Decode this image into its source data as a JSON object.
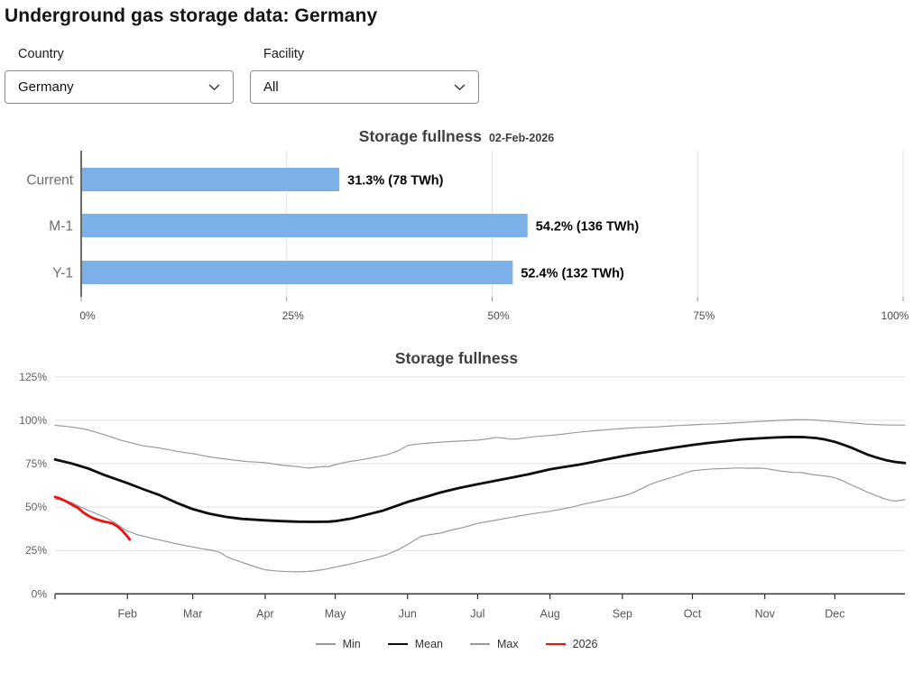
{
  "page": {
    "title": "Underground gas storage data: Germany"
  },
  "filters": {
    "country": {
      "label": "Country",
      "value": "Germany"
    },
    "facility": {
      "label": "Facility",
      "value": "All"
    }
  },
  "colors": {
    "bar_fill": "#7cb0e9",
    "grid": "#e2e2e2",
    "axis": "#2b2b2b",
    "tick_text": "#4a4a4a",
    "category_text": "#6e6e6e",
    "value_label_text": "#000000"
  },
  "chart_data": [
    {
      "type": "bar",
      "orientation": "horizontal",
      "title": "Storage fullness",
      "subtitle": "02-Feb-2026",
      "categories": [
        "Current",
        "M-1",
        "Y-1"
      ],
      "values": [
        31.3,
        54.2,
        52.4
      ],
      "value_labels": [
        "31.3% (78 TWh)",
        "54.2% (136 TWh)",
        "52.4% (132 TWh)"
      ],
      "xlim": [
        0,
        100
      ],
      "xticks": [
        0,
        25,
        50,
        75,
        100
      ],
      "xtick_labels": [
        "0%",
        "25%",
        "50%",
        "75%",
        "100%"
      ]
    },
    {
      "type": "line",
      "title": "Storage fullness",
      "ylim": [
        0,
        125
      ],
      "yticks": [
        0,
        25,
        50,
        75,
        100,
        125
      ],
      "ytick_labels": [
        "0%",
        "25%",
        "50%",
        "75%",
        "100%",
        "125%"
      ],
      "xtick_month_labels": [
        "Feb",
        "Mar",
        "Apr",
        "May",
        "Jun",
        "Jul",
        "Aug",
        "Sep",
        "Oct",
        "Nov",
        "Dec"
      ],
      "month_start_days": [
        32,
        60,
        91,
        121,
        152,
        182,
        213,
        244,
        274,
        305,
        335
      ],
      "legend_position": "bottom",
      "series": [
        {
          "name": "Min",
          "color": "#9a9a9a",
          "width": 1.2,
          "points": [
            [
              1,
              54.6
            ],
            [
              5,
              53.8
            ],
            [
              8,
              52.6
            ],
            [
              12,
              50.0
            ],
            [
              15,
              48.2
            ],
            [
              19,
              46.0
            ],
            [
              22,
              44.4
            ],
            [
              26,
              41.5
            ],
            [
              29,
              38.8
            ],
            [
              32,
              36.2
            ],
            [
              36,
              34.2
            ],
            [
              39,
              33.2
            ],
            [
              43,
              31.8
            ],
            [
              46,
              31.0
            ],
            [
              50,
              29.8
            ],
            [
              53,
              28.8
            ],
            [
              57,
              27.8
            ],
            [
              60,
              27.0
            ],
            [
              64,
              26.0
            ],
            [
              67,
              25.4
            ],
            [
              70,
              24.6
            ],
            [
              72,
              23.6
            ],
            [
              74,
              21.8
            ],
            [
              77,
              20.0
            ],
            [
              81,
              18.2
            ],
            [
              84,
              16.8
            ],
            [
              88,
              15.0
            ],
            [
              91,
              13.9
            ],
            [
              95,
              13.3
            ],
            [
              98,
              13.0
            ],
            [
              102,
              12.8
            ],
            [
              105,
              12.7
            ],
            [
              109,
              12.9
            ],
            [
              112,
              13.2
            ],
            [
              116,
              14.0
            ],
            [
              121,
              15.4
            ],
            [
              126,
              16.8
            ],
            [
              130,
              18.0
            ],
            [
              135,
              19.6
            ],
            [
              139,
              21.0
            ],
            [
              143,
              22.5
            ],
            [
              148,
              25.5
            ],
            [
              152,
              28.4
            ],
            [
              155,
              31.0
            ],
            [
              158,
              33.2
            ],
            [
              162,
              34.2
            ],
            [
              166,
              35.0
            ],
            [
              171,
              36.8
            ],
            [
              175,
              38.0
            ],
            [
              179,
              39.4
            ],
            [
              182,
              40.6
            ],
            [
              187,
              41.8
            ],
            [
              191,
              42.8
            ],
            [
              196,
              44.0
            ],
            [
              201,
              45.2
            ],
            [
              206,
              46.3
            ],
            [
              213,
              47.6
            ],
            [
              218,
              48.8
            ],
            [
              223,
              50.2
            ],
            [
              227,
              51.6
            ],
            [
              232,
              53.0
            ],
            [
              238,
              54.6
            ],
            [
              244,
              56.3
            ],
            [
              248,
              58.0
            ],
            [
              252,
              60.5
            ],
            [
              256,
              63.2
            ],
            [
              260,
              65.0
            ],
            [
              264,
              66.6
            ],
            [
              268,
              68.3
            ],
            [
              271,
              69.8
            ],
            [
              274,
              70.9
            ],
            [
              278,
              71.5
            ],
            [
              283,
              72.0
            ],
            [
              288,
              72.2
            ],
            [
              293,
              72.6
            ],
            [
              298,
              72.4
            ],
            [
              302,
              72.5
            ],
            [
              305,
              72.3
            ],
            [
              309,
              71.4
            ],
            [
              313,
              70.6
            ],
            [
              317,
              70.0
            ],
            [
              321,
              69.9
            ],
            [
              325,
              68.8
            ],
            [
              329,
              68.2
            ],
            [
              333,
              67.5
            ],
            [
              335,
              66.9
            ],
            [
              339,
              64.8
            ],
            [
              342,
              62.8
            ],
            [
              346,
              60.5
            ],
            [
              349,
              58.6
            ],
            [
              352,
              57.0
            ],
            [
              356,
              54.9
            ],
            [
              359,
              53.8
            ],
            [
              361,
              53.5
            ],
            [
              365,
              54.3
            ]
          ]
        },
        {
          "name": "Mean",
          "color": "#0d0d0d",
          "width": 2.8,
          "points": [
            [
              1,
              77.4
            ],
            [
              8,
              75.2
            ],
            [
              15,
              72.4
            ],
            [
              22,
              68.6
            ],
            [
              32,
              63.8
            ],
            [
              39,
              60.2
            ],
            [
              46,
              56.8
            ],
            [
              53,
              52.5
            ],
            [
              60,
              48.8
            ],
            [
              67,
              46.2
            ],
            [
              74,
              44.4
            ],
            [
              81,
              43.2
            ],
            [
              91,
              42.4
            ],
            [
              98,
              41.9
            ],
            [
              105,
              41.6
            ],
            [
              112,
              41.5
            ],
            [
              118,
              41.6
            ],
            [
              121,
              41.9
            ],
            [
              128,
              43.4
            ],
            [
              135,
              45.8
            ],
            [
              141,
              47.8
            ],
            [
              152,
              53.0
            ],
            [
              160,
              56.0
            ],
            [
              166,
              58.4
            ],
            [
              174,
              61.0
            ],
            [
              182,
              63.2
            ],
            [
              189,
              65.0
            ],
            [
              196,
              66.8
            ],
            [
              204,
              69.0
            ],
            [
              213,
              71.8
            ],
            [
              220,
              73.3
            ],
            [
              227,
              74.8
            ],
            [
              235,
              77.0
            ],
            [
              244,
              79.3
            ],
            [
              251,
              81.0
            ],
            [
              258,
              82.5
            ],
            [
              266,
              84.3
            ],
            [
              274,
              85.8
            ],
            [
              281,
              87.0
            ],
            [
              288,
              88.0
            ],
            [
              295,
              89.0
            ],
            [
              302,
              89.6
            ],
            [
              309,
              90.1
            ],
            [
              316,
              90.4
            ],
            [
              322,
              90.3
            ],
            [
              327,
              89.8
            ],
            [
              331,
              88.9
            ],
            [
              335,
              87.6
            ],
            [
              339,
              85.8
            ],
            [
              342,
              84.3
            ],
            [
              346,
              82.0
            ],
            [
              349,
              80.3
            ],
            [
              353,
              78.5
            ],
            [
              357,
              77.0
            ],
            [
              361,
              76.0
            ],
            [
              365,
              75.4
            ]
          ]
        },
        {
          "name": "Max",
          "color": "#9a9a9a",
          "width": 1.2,
          "points": [
            [
              1,
              97.2
            ],
            [
              6,
              96.5
            ],
            [
              10,
              95.8
            ],
            [
              15,
              94.6
            ],
            [
              19,
              93.0
            ],
            [
              22,
              91.8
            ],
            [
              26,
              90.0
            ],
            [
              29,
              88.6
            ],
            [
              32,
              87.6
            ],
            [
              36,
              86.2
            ],
            [
              39,
              85.3
            ],
            [
              43,
              84.6
            ],
            [
              46,
              84.0
            ],
            [
              50,
              83.0
            ],
            [
              53,
              82.2
            ],
            [
              57,
              81.4
            ],
            [
              60,
              80.8
            ],
            [
              64,
              79.8
            ],
            [
              67,
              79.0
            ],
            [
              70,
              78.4
            ],
            [
              74,
              77.7
            ],
            [
              78,
              77.0
            ],
            [
              81,
              76.6
            ],
            [
              84,
              76.2
            ],
            [
              88,
              75.9
            ],
            [
              91,
              75.6
            ],
            [
              95,
              74.8
            ],
            [
              98,
              74.2
            ],
            [
              101,
              73.8
            ],
            [
              105,
              73.3
            ],
            [
              108,
              72.8
            ],
            [
              110,
              72.5
            ],
            [
              113,
              73.0
            ],
            [
              116,
              73.4
            ],
            [
              118,
              73.2
            ],
            [
              121,
              74.5
            ],
            [
              126,
              76.0
            ],
            [
              131,
              77.0
            ],
            [
              135,
              78.0
            ],
            [
              139,
              79.0
            ],
            [
              144,
              80.5
            ],
            [
              148,
              82.5
            ],
            [
              152,
              85.5
            ],
            [
              156,
              86.3
            ],
            [
              160,
              86.8
            ],
            [
              166,
              87.4
            ],
            [
              171,
              87.8
            ],
            [
              175,
              88.1
            ],
            [
              179,
              88.4
            ],
            [
              182,
              88.6
            ],
            [
              186,
              89.3
            ],
            [
              190,
              90.2
            ],
            [
              193,
              89.8
            ],
            [
              196,
              89.2
            ],
            [
              199,
              89.3
            ],
            [
              204,
              90.2
            ],
            [
              208,
              90.8
            ],
            [
              213,
              91.3
            ],
            [
              218,
              92.0
            ],
            [
              223,
              92.8
            ],
            [
              227,
              93.4
            ],
            [
              232,
              94.0
            ],
            [
              238,
              94.7
            ],
            [
              244,
              95.3
            ],
            [
              249,
              95.7
            ],
            [
              254,
              96.0
            ],
            [
              258,
              96.2
            ],
            [
              263,
              96.6
            ],
            [
              268,
              97.0
            ],
            [
              274,
              97.4
            ],
            [
              280,
              97.8
            ],
            [
              285,
              98.0
            ],
            [
              288,
              98.2
            ],
            [
              294,
              98.7
            ],
            [
              299,
              99.1
            ],
            [
              305,
              99.5
            ],
            [
              311,
              100.0
            ],
            [
              317,
              100.3
            ],
            [
              323,
              100.4
            ],
            [
              328,
              100.0
            ],
            [
              332,
              99.6
            ],
            [
              335,
              99.3
            ],
            [
              340,
              98.8
            ],
            [
              345,
              98.2
            ],
            [
              349,
              97.8
            ],
            [
              354,
              97.5
            ],
            [
              359,
              97.3
            ],
            [
              365,
              97.3
            ]
          ]
        },
        {
          "name": "2026",
          "color": "#ee1111",
          "width": 2.8,
          "points": [
            [
              1,
              55.9
            ],
            [
              3,
              55.0
            ],
            [
              5,
              53.8
            ],
            [
              7,
              52.4
            ],
            [
              9,
              50.8
            ],
            [
              11,
              49.4
            ],
            [
              13,
              47.0
            ],
            [
              15,
              45.3
            ],
            [
              17,
              43.8
            ],
            [
              19,
              42.8
            ],
            [
              21,
              42.0
            ],
            [
              23,
              41.4
            ],
            [
              25,
              40.8
            ],
            [
              26,
              40.3
            ],
            [
              28,
              38.6
            ],
            [
              30,
              36.2
            ],
            [
              32,
              33.0
            ],
            [
              33,
              31.3
            ]
          ]
        }
      ]
    }
  ]
}
